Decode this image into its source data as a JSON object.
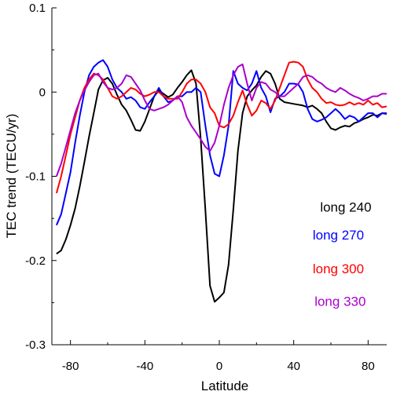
{
  "chart_data": {
    "type": "line",
    "title": "",
    "xlabel": "Latitude",
    "ylabel": "TEC trend (TECU/yr)",
    "xlim": [
      -90,
      90
    ],
    "ylim": [
      -0.3,
      0.1
    ],
    "grid": false,
    "legend_position": "right",
    "x_ticks": [
      -80,
      -40,
      0,
      40,
      80
    ],
    "x_tick_labels": [
      "-80",
      "-40",
      "0",
      "40",
      "80"
    ],
    "y_ticks": [
      0.1,
      0,
      -0.1,
      -0.2,
      -0.3
    ],
    "y_tick_labels": [
      "0.1",
      "0",
      "-0.1",
      "-0.2",
      "-0.3"
    ],
    "series": [
      {
        "name": "long 240",
        "color": "#000000",
        "points": [
          [
            -87.5,
            -0.192
          ],
          [
            -85,
            -0.188
          ],
          [
            -82.5,
            -0.175
          ],
          [
            -80,
            -0.158
          ],
          [
            -77.5,
            -0.138
          ],
          [
            -75,
            -0.112
          ],
          [
            -72.5,
            -0.083
          ],
          [
            -70,
            -0.053
          ],
          [
            -67.5,
            -0.025
          ],
          [
            -65,
            0.003
          ],
          [
            -62.5,
            0.014
          ],
          [
            -60,
            0.017
          ],
          [
            -57.5,
            0.01
          ],
          [
            -55,
            -0.003
          ],
          [
            -52.5,
            -0.015
          ],
          [
            -50,
            -0.022
          ],
          [
            -47.5,
            -0.033
          ],
          [
            -45,
            -0.045
          ],
          [
            -42.5,
            -0.046
          ],
          [
            -40,
            -0.035
          ],
          [
            -37.5,
            -0.02
          ],
          [
            -35,
            -0.005
          ],
          [
            -32.5,
            0.002
          ],
          [
            -30,
            -0.002
          ],
          [
            -27.5,
            -0.006
          ],
          [
            -25,
            -0.003
          ],
          [
            -22.5,
            0.005
          ],
          [
            -20,
            0.012
          ],
          [
            -17.5,
            0.02
          ],
          [
            -15,
            0.026
          ],
          [
            -12.5,
            0.01
          ],
          [
            -10,
            -0.055
          ],
          [
            -7.5,
            -0.14
          ],
          [
            -5,
            -0.23
          ],
          [
            -2.5,
            -0.249
          ],
          [
            0,
            -0.244
          ],
          [
            2.5,
            -0.238
          ],
          [
            5,
            -0.205
          ],
          [
            7.5,
            -0.14
          ],
          [
            10,
            -0.07
          ],
          [
            12.5,
            -0.025
          ],
          [
            15,
            -0.005
          ],
          [
            17.5,
            0.002
          ],
          [
            20,
            0.008
          ],
          [
            22.5,
            0.018
          ],
          [
            25,
            0.025
          ],
          [
            27.5,
            0.022
          ],
          [
            30,
            0.01
          ],
          [
            32.5,
            -0.008
          ],
          [
            35,
            -0.012
          ],
          [
            37.5,
            -0.013
          ],
          [
            40,
            -0.014
          ],
          [
            42.5,
            -0.015
          ],
          [
            45,
            -0.016
          ],
          [
            47.5,
            -0.018
          ],
          [
            50,
            -0.016
          ],
          [
            52.5,
            -0.02
          ],
          [
            55,
            -0.025
          ],
          [
            57.5,
            -0.035
          ],
          [
            60,
            -0.043
          ],
          [
            62.5,
            -0.045
          ],
          [
            65,
            -0.042
          ],
          [
            67.5,
            -0.04
          ],
          [
            70,
            -0.041
          ],
          [
            72.5,
            -0.037
          ],
          [
            75,
            -0.035
          ],
          [
            77.5,
            -0.032
          ],
          [
            80,
            -0.03
          ],
          [
            82.5,
            -0.027
          ],
          [
            85,
            -0.028
          ],
          [
            87.5,
            -0.025
          ],
          [
            90,
            -0.026
          ]
        ]
      },
      {
        "name": "long 270",
        "color": "#0000ff",
        "points": [
          [
            -87.5,
            -0.158
          ],
          [
            -85,
            -0.145
          ],
          [
            -82.5,
            -0.12
          ],
          [
            -80,
            -0.095
          ],
          [
            -77.5,
            -0.06
          ],
          [
            -75,
            -0.028
          ],
          [
            -72.5,
            0.0
          ],
          [
            -70,
            0.02
          ],
          [
            -67.5,
            0.03
          ],
          [
            -65,
            0.035
          ],
          [
            -62.5,
            0.038
          ],
          [
            -60,
            0.03
          ],
          [
            -57.5,
            0.015
          ],
          [
            -55,
            0.005
          ],
          [
            -52.5,
            0.0
          ],
          [
            -50,
            -0.008
          ],
          [
            -47.5,
            -0.006
          ],
          [
            -45,
            -0.01
          ],
          [
            -42.5,
            -0.018
          ],
          [
            -40,
            -0.02
          ],
          [
            -37.5,
            -0.012
          ],
          [
            -35,
            -0.005
          ],
          [
            -32.5,
            0.005
          ],
          [
            -30,
            -0.005
          ],
          [
            -27.5,
            -0.012
          ],
          [
            -25,
            -0.01
          ],
          [
            -22.5,
            -0.005
          ],
          [
            -20,
            -0.005
          ],
          [
            -17.5,
            0.0
          ],
          [
            -15,
            0.0
          ],
          [
            -12.5,
            0.005
          ],
          [
            -10,
            0.0
          ],
          [
            -7.5,
            -0.04
          ],
          [
            -5,
            -0.075
          ],
          [
            -2.5,
            -0.097
          ],
          [
            0,
            -0.1
          ],
          [
            2.5,
            -0.075
          ],
          [
            5,
            -0.04
          ],
          [
            7.5,
            0.025
          ],
          [
            10,
            0.01
          ],
          [
            12.5,
            0.005
          ],
          [
            15,
            0.002
          ],
          [
            17.5,
            0.01
          ],
          [
            20,
            0.025
          ],
          [
            22.5,
            0.005
          ],
          [
            25,
            -0.005
          ],
          [
            27.5,
            -0.024
          ],
          [
            30,
            -0.008
          ],
          [
            32.5,
            -0.005
          ],
          [
            35,
            0.0
          ],
          [
            37.5,
            0.01
          ],
          [
            40,
            0.01
          ],
          [
            42.5,
            0.009
          ],
          [
            45,
            0.0
          ],
          [
            47.5,
            -0.02
          ],
          [
            50,
            -0.032
          ],
          [
            52.5,
            -0.035
          ],
          [
            55,
            -0.033
          ],
          [
            57.5,
            -0.03
          ],
          [
            60,
            -0.025
          ],
          [
            62.5,
            -0.02
          ],
          [
            65,
            -0.025
          ],
          [
            67.5,
            -0.032
          ],
          [
            70,
            -0.028
          ],
          [
            72.5,
            -0.03
          ],
          [
            75,
            -0.035
          ],
          [
            77.5,
            -0.03
          ],
          [
            80,
            -0.025
          ],
          [
            82.5,
            -0.025
          ],
          [
            85,
            -0.03
          ],
          [
            87.5,
            -0.025
          ],
          [
            90,
            -0.025
          ]
        ]
      },
      {
        "name": "long 300",
        "color": "#ff0000",
        "points": [
          [
            -87.5,
            -0.12
          ],
          [
            -85,
            -0.1
          ],
          [
            -82.5,
            -0.075
          ],
          [
            -80,
            -0.05
          ],
          [
            -77.5,
            -0.03
          ],
          [
            -75,
            -0.01
          ],
          [
            -72.5,
            0.005
          ],
          [
            -70,
            0.015
          ],
          [
            -67.5,
            0.022
          ],
          [
            -65,
            0.02
          ],
          [
            -62.5,
            0.015
          ],
          [
            -60,
            0.005
          ],
          [
            -57.5,
            -0.005
          ],
          [
            -55,
            -0.008
          ],
          [
            -52.5,
            -0.005
          ],
          [
            -50,
            0.0
          ],
          [
            -47.5,
            0.005
          ],
          [
            -45,
            0.003
          ],
          [
            -42.5,
            -0.002
          ],
          [
            -40,
            -0.005
          ],
          [
            -37.5,
            -0.003
          ],
          [
            -35,
            0.0
          ],
          [
            -32.5,
            0.0
          ],
          [
            -30,
            -0.005
          ],
          [
            -27.5,
            -0.008
          ],
          [
            -25,
            -0.008
          ],
          [
            -22.5,
            -0.008
          ],
          [
            -20,
            0.0
          ],
          [
            -17.5,
            0.01
          ],
          [
            -15,
            0.015
          ],
          [
            -12.5,
            0.015
          ],
          [
            -10,
            0.01
          ],
          [
            -7.5,
            0.0
          ],
          [
            -5,
            -0.018
          ],
          [
            -2.5,
            -0.025
          ],
          [
            0,
            -0.04
          ],
          [
            2.5,
            -0.042
          ],
          [
            5,
            -0.038
          ],
          [
            7.5,
            -0.028
          ],
          [
            10,
            -0.012
          ],
          [
            12.5,
            0.002
          ],
          [
            15,
            -0.015
          ],
          [
            17.5,
            -0.028
          ],
          [
            20,
            -0.022
          ],
          [
            22.5,
            -0.01
          ],
          [
            25,
            -0.013
          ],
          [
            27.5,
            -0.02
          ],
          [
            30,
            -0.01
          ],
          [
            32.5,
            0.005
          ],
          [
            35,
            0.02
          ],
          [
            37.5,
            0.035
          ],
          [
            40,
            0.036
          ],
          [
            42.5,
            0.035
          ],
          [
            45,
            0.03
          ],
          [
            47.5,
            0.015
          ],
          [
            50,
            0.005
          ],
          [
            52.5,
            0.0
          ],
          [
            55,
            -0.008
          ],
          [
            57.5,
            -0.013
          ],
          [
            60,
            -0.012
          ],
          [
            62.5,
            -0.015
          ],
          [
            65,
            -0.016
          ],
          [
            67.5,
            -0.015
          ],
          [
            70,
            -0.012
          ],
          [
            72.5,
            -0.015
          ],
          [
            75,
            -0.013
          ],
          [
            77.5,
            -0.015
          ],
          [
            80,
            -0.01
          ],
          [
            82.5,
            -0.015
          ],
          [
            85,
            -0.013
          ],
          [
            87.5,
            -0.018
          ],
          [
            90,
            -0.017
          ]
        ]
      },
      {
        "name": "long 330",
        "color": "#aa00cc",
        "points": [
          [
            -87.5,
            -0.1
          ],
          [
            -85,
            -0.085
          ],
          [
            -82.5,
            -0.065
          ],
          [
            -80,
            -0.045
          ],
          [
            -77.5,
            -0.025
          ],
          [
            -75,
            -0.01
          ],
          [
            -72.5,
            0.002
          ],
          [
            -70,
            0.012
          ],
          [
            -67.5,
            0.02
          ],
          [
            -65,
            0.022
          ],
          [
            -62.5,
            0.012
          ],
          [
            -60,
            0.005
          ],
          [
            -57.5,
            0.003
          ],
          [
            -55,
            0.005
          ],
          [
            -52.5,
            0.01
          ],
          [
            -50,
            0.02
          ],
          [
            -47.5,
            0.018
          ],
          [
            -45,
            0.01
          ],
          [
            -42.5,
            0.002
          ],
          [
            -40,
            -0.01
          ],
          [
            -37.5,
            -0.02
          ],
          [
            -35,
            -0.022
          ],
          [
            -32.5,
            -0.02
          ],
          [
            -30,
            -0.018
          ],
          [
            -27.5,
            -0.015
          ],
          [
            -25,
            -0.01
          ],
          [
            -22.5,
            -0.005
          ],
          [
            -20,
            -0.012
          ],
          [
            -17.5,
            -0.03
          ],
          [
            -15,
            -0.04
          ],
          [
            -12.5,
            -0.048
          ],
          [
            -10,
            -0.056
          ],
          [
            -7.5,
            -0.065
          ],
          [
            -5,
            -0.07
          ],
          [
            -2.5,
            -0.06
          ],
          [
            0,
            -0.04
          ],
          [
            2.5,
            -0.015
          ],
          [
            5,
            0.005
          ],
          [
            7.5,
            0.02
          ],
          [
            10,
            0.03
          ],
          [
            12.5,
            0.033
          ],
          [
            15,
            0.01
          ],
          [
            17.5,
            -0.01
          ],
          [
            20,
            0.005
          ],
          [
            22.5,
            0.012
          ],
          [
            25,
            0.01
          ],
          [
            27.5,
            0.003
          ],
          [
            30,
            0.0
          ],
          [
            32.5,
            -0.005
          ],
          [
            35,
            -0.005
          ],
          [
            37.5,
            0.0
          ],
          [
            40,
            0.005
          ],
          [
            42.5,
            0.01
          ],
          [
            45,
            0.018
          ],
          [
            47.5,
            0.02
          ],
          [
            50,
            0.018
          ],
          [
            52.5,
            0.013
          ],
          [
            55,
            0.01
          ],
          [
            57.5,
            0.005
          ],
          [
            60,
            0.002
          ],
          [
            62.5,
            0.0
          ],
          [
            65,
            0.005
          ],
          [
            67.5,
            0.002
          ],
          [
            70,
            -0.002
          ],
          [
            72.5,
            -0.005
          ],
          [
            75,
            -0.007
          ],
          [
            77.5,
            -0.01
          ],
          [
            80,
            -0.008
          ],
          [
            82.5,
            -0.005
          ],
          [
            85,
            -0.005
          ],
          [
            87.5,
            -0.002
          ],
          [
            90,
            -0.002
          ]
        ]
      }
    ]
  }
}
